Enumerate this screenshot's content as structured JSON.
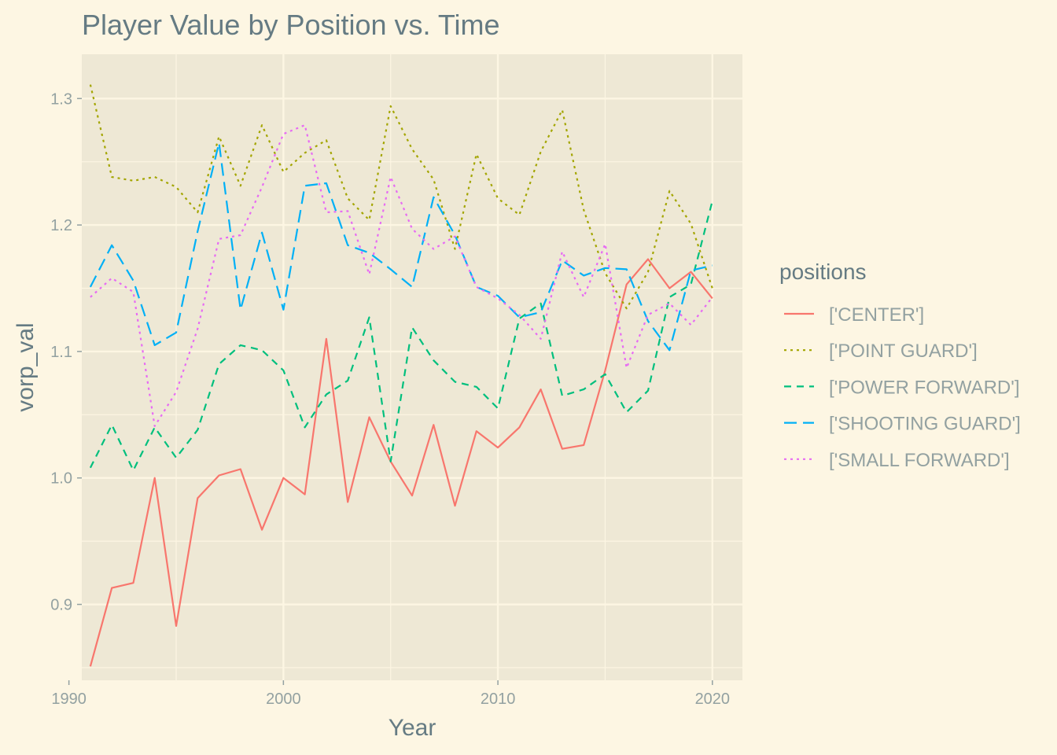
{
  "chart_data": {
    "type": "line",
    "title": "Player Value by Position vs. Time",
    "xlabel": "Year",
    "ylabel": "vorp_val",
    "xlim": [
      1990.6,
      2021.4
    ],
    "ylim": [
      0.84,
      1.335
    ],
    "xticks": [
      1990,
      2000,
      2010,
      2020
    ],
    "yticks": [
      0.9,
      1.0,
      1.1,
      1.2,
      1.3
    ],
    "ytick_labels": [
      "0.9",
      "1.0",
      "1.1",
      "1.2",
      "1.3"
    ],
    "grid": true,
    "legend": {
      "title": "positions",
      "placement": "right"
    },
    "x": [
      1991,
      1992,
      1993,
      1994,
      1995,
      1996,
      1997,
      1998,
      1999,
      2000,
      2001,
      2002,
      2003,
      2004,
      2005,
      2006,
      2007,
      2008,
      2009,
      2010,
      2011,
      2012,
      2013,
      2014,
      2015,
      2016,
      2017,
      2018,
      2019,
      2020
    ],
    "series": [
      {
        "name": "['CENTER']",
        "color": "#F8766D",
        "dash": "solid",
        "values": [
          0.851,
          0.913,
          0.917,
          1.0,
          0.883,
          0.984,
          1.002,
          1.007,
          0.959,
          1.0,
          0.987,
          1.11,
          0.981,
          1.048,
          1.013,
          0.986,
          1.042,
          0.978,
          1.037,
          1.024,
          1.04,
          1.07,
          1.023,
          1.026,
          1.085,
          1.153,
          1.173,
          1.15,
          1.163,
          1.142
        ]
      },
      {
        "name": "['POINT GUARD']",
        "color": "#A3A500",
        "dash": "dotted",
        "values": [
          1.311,
          1.238,
          1.235,
          1.238,
          1.23,
          1.21,
          1.27,
          1.231,
          1.279,
          1.242,
          1.257,
          1.267,
          1.221,
          1.204,
          1.294,
          1.26,
          1.236,
          1.181,
          1.256,
          1.221,
          1.208,
          1.258,
          1.291,
          1.212,
          1.162,
          1.134,
          1.163,
          1.227,
          1.201,
          1.15
        ]
      },
      {
        "name": "['POWER FORWARD']",
        "color": "#00BF7D",
        "dash": "dashed",
        "values": [
          1.008,
          1.042,
          1.006,
          1.04,
          1.016,
          1.038,
          1.09,
          1.105,
          1.101,
          1.085,
          1.04,
          1.066,
          1.077,
          1.127,
          1.013,
          1.119,
          1.093,
          1.076,
          1.072,
          1.055,
          1.126,
          1.138,
          1.065,
          1.07,
          1.082,
          1.052,
          1.069,
          1.143,
          1.153,
          1.219
        ]
      },
      {
        "name": "['SHOOTING GUARD']",
        "color": "#00B0F6",
        "dash": "longdash",
        "values": [
          1.151,
          1.184,
          1.156,
          1.105,
          1.115,
          1.195,
          1.265,
          1.133,
          1.194,
          1.133,
          1.231,
          1.233,
          1.184,
          1.178,
          1.165,
          1.151,
          1.222,
          1.192,
          1.151,
          1.144,
          1.127,
          1.131,
          1.172,
          1.16,
          1.166,
          1.165,
          1.124,
          1.101,
          1.164,
          1.168
        ]
      },
      {
        "name": "['SMALL FORWARD']",
        "color": "#E76BF3",
        "dash": "dotted",
        "values": [
          1.143,
          1.158,
          1.147,
          1.041,
          1.068,
          1.118,
          1.189,
          1.192,
          1.23,
          1.272,
          1.279,
          1.21,
          1.211,
          1.161,
          1.238,
          1.197,
          1.181,
          1.191,
          1.151,
          1.142,
          1.129,
          1.11,
          1.179,
          1.143,
          1.185,
          1.087,
          1.129,
          1.138,
          1.121,
          1.143
        ]
      }
    ]
  }
}
